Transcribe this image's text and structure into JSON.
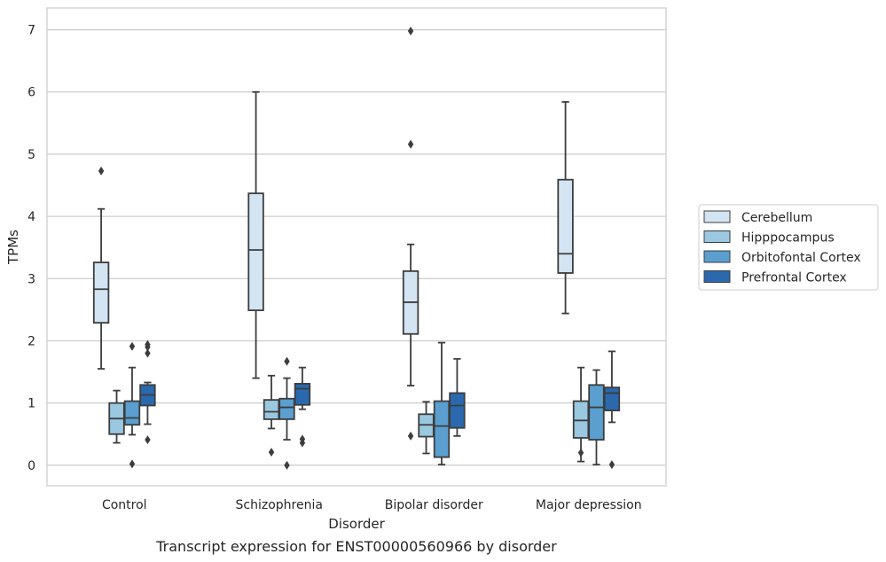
{
  "chart_data": {
    "type": "box",
    "caption": "Transcript expression for ENST00000560966 by disorder",
    "xlabel": "Disorder",
    "ylabel": "TPMs",
    "ylim": [
      -0.33,
      7.35
    ],
    "yticks": [
      0,
      1,
      2,
      3,
      4,
      5,
      6,
      7
    ],
    "grid": true,
    "legend_position": "right",
    "categories": [
      "Control",
      "Schizophrenia",
      "Bipolar disorder",
      "Major depression"
    ],
    "series": [
      {
        "name": "Cerebellum",
        "color": "#d3e4f3",
        "boxes": [
          {
            "whisker_low": 1.55,
            "q1": 2.29,
            "median": 2.83,
            "q3": 3.26,
            "whisker_high": 4.12,
            "outliers": [
              4.73
            ]
          },
          {
            "whisker_low": 1.4,
            "q1": 2.49,
            "median": 3.46,
            "q3": 4.37,
            "whisker_high": 6.0,
            "outliers": []
          },
          {
            "whisker_low": 1.28,
            "q1": 2.11,
            "median": 2.62,
            "q3": 3.12,
            "whisker_high": 3.55,
            "outliers": [
              0.47,
              5.16,
              6.98
            ]
          },
          {
            "whisker_low": 2.44,
            "q1": 3.09,
            "median": 3.4,
            "q3": 4.59,
            "whisker_high": 5.84,
            "outliers": []
          }
        ]
      },
      {
        "name": "Hipppocampus",
        "color": "#9ac8e0",
        "boxes": [
          {
            "whisker_low": 0.36,
            "q1": 0.5,
            "median": 0.75,
            "q3": 1.0,
            "whisker_high": 1.2,
            "outliers": []
          },
          {
            "whisker_low": 0.59,
            "q1": 0.74,
            "median": 0.86,
            "q3": 1.05,
            "whisker_high": 1.44,
            "outliers": [
              0.21
            ]
          },
          {
            "whisker_low": 0.19,
            "q1": 0.46,
            "median": 0.65,
            "q3": 0.82,
            "whisker_high": 1.02,
            "outliers": []
          },
          {
            "whisker_low": 0.06,
            "q1": 0.44,
            "median": 0.72,
            "q3": 1.03,
            "whisker_high": 1.57,
            "outliers": [
              0.2
            ]
          }
        ]
      },
      {
        "name": "Orbitofontal Cortex",
        "color": "#5a9fcf",
        "boxes": [
          {
            "whisker_low": 0.49,
            "q1": 0.65,
            "median": 0.76,
            "q3": 1.03,
            "whisker_high": 1.57,
            "outliers": [
              0.02,
              1.91
            ]
          },
          {
            "whisker_low": 0.41,
            "q1": 0.74,
            "median": 0.93,
            "q3": 1.07,
            "whisker_high": 1.4,
            "outliers": [
              0.0,
              1.67
            ]
          },
          {
            "whisker_low": 0.01,
            "q1": 0.13,
            "median": 0.63,
            "q3": 1.03,
            "whisker_high": 1.97,
            "outliers": []
          },
          {
            "whisker_low": 0.01,
            "q1": 0.41,
            "median": 0.93,
            "q3": 1.29,
            "whisker_high": 1.53,
            "outliers": []
          }
        ]
      },
      {
        "name": "Prefrontal Cortex",
        "color": "#2a69ad",
        "boxes": [
          {
            "whisker_low": 0.66,
            "q1": 0.96,
            "median": 1.13,
            "q3": 1.29,
            "whisker_high": 1.33,
            "outliers": [
              0.41,
              1.8,
              1.9,
              1.94
            ]
          },
          {
            "whisker_low": 0.9,
            "q1": 0.97,
            "median": 1.23,
            "q3": 1.31,
            "whisker_high": 1.57,
            "outliers": [
              0.36,
              0.42
            ]
          },
          {
            "whisker_low": 0.47,
            "q1": 0.6,
            "median": 0.96,
            "q3": 1.16,
            "whisker_high": 1.71,
            "outliers": []
          },
          {
            "whisker_low": 0.69,
            "q1": 0.88,
            "median": 1.16,
            "q3": 1.25,
            "whisker_high": 1.83,
            "outliers": [
              0.01
            ]
          }
        ]
      }
    ]
  }
}
